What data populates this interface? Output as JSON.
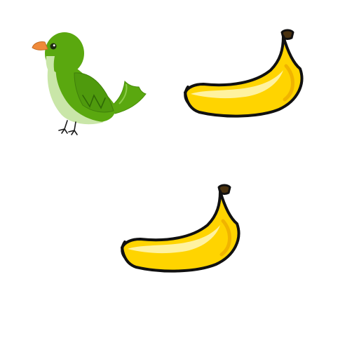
{
  "scene": {
    "background": "#ffffff",
    "items": [
      {
        "kind": "bird",
        "icon": "green-bird-icon",
        "colors": {
          "body": "#5aa80f",
          "belly": "#c9e6a8",
          "beak": "#f08a3a"
        }
      },
      {
        "kind": "banana",
        "icon": "banana-icon",
        "colors": {
          "peel": "#ffd400",
          "highlight": "#fff2a0",
          "outline": "#111111",
          "stem": "#4a3210"
        }
      },
      {
        "kind": "banana",
        "icon": "banana-icon",
        "colors": {
          "peel": "#ffd400",
          "highlight": "#fff2a0",
          "outline": "#111111",
          "stem": "#4a3210"
        }
      }
    ]
  }
}
